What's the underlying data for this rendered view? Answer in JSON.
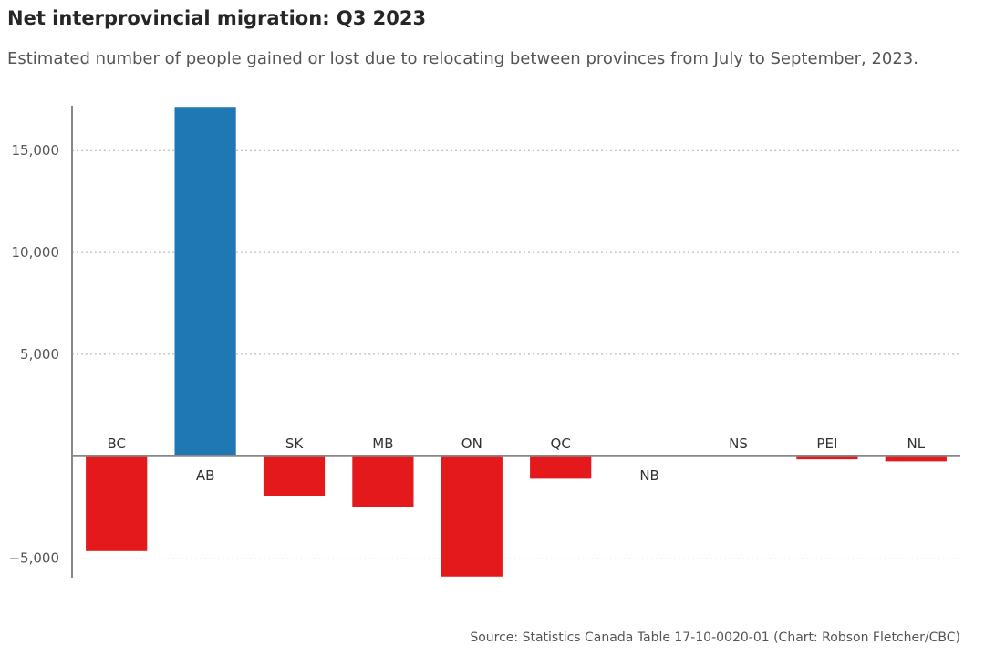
{
  "chart_data": {
    "type": "bar",
    "title": "Net interprovincial migration: Q3 2023",
    "subtitle": "Estimated number of people gained or lost due to relocating between provinces from July to September, 2023.",
    "source": "Source: Statistics Canada Table 17-10-0020-01 (Chart: Robson Fletcher/CBC)",
    "xlabel": "",
    "ylabel": "",
    "categories": [
      "BC",
      "AB",
      "SK",
      "MB",
      "ON",
      "QC",
      "NB",
      "NS",
      "PEI",
      "NL"
    ],
    "values": [
      -4650,
      17100,
      -1950,
      -2500,
      -5900,
      -1100,
      0,
      -30,
      -150,
      -250
    ],
    "ylim": [
      -6000,
      17200
    ],
    "yticks": [
      -5000,
      5000,
      10000,
      15000
    ],
    "ytick_labels": [
      "−5,000",
      "5,000",
      "10,000",
      "15,000"
    ],
    "grid": true,
    "colors": {
      "positive": "#1f77b4",
      "negative": "#e3191c",
      "axis": "#888888",
      "grid": "#b0b0b0"
    }
  }
}
